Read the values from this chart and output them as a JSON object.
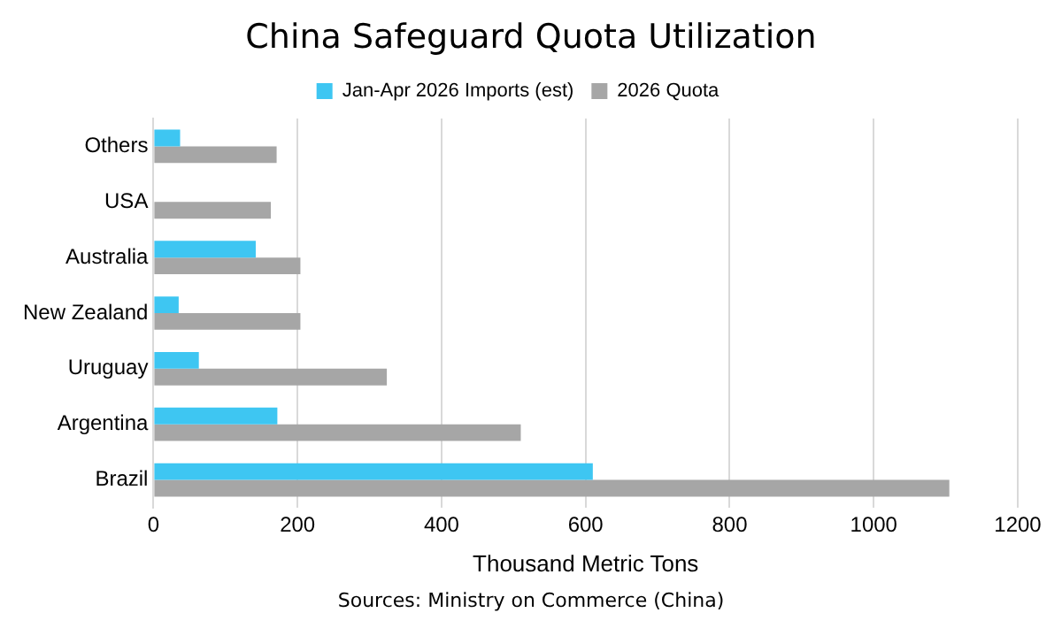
{
  "chart_data": {
    "type": "bar",
    "orientation": "horizontal",
    "title": "China Safeguard Quota Utilization",
    "xlabel": "Thousand Metric Tons",
    "categories": [
      "Others",
      "USA",
      "Australia",
      "New Zealand",
      "Uruguay",
      "Argentina",
      "Brazil"
    ],
    "series": [
      {
        "name": "Jan-Apr 2026 Imports (est)",
        "color": "#3ec6f2",
        "values": [
          37,
          0,
          142,
          35,
          63,
          172,
          610
        ]
      },
      {
        "name": "2026 Quota",
        "color": "#a6a6a6",
        "values": [
          171,
          163,
          204,
          204,
          324,
          510,
          1105
        ]
      }
    ],
    "xlim": [
      0,
      1200
    ],
    "xticks": [
      0,
      200,
      400,
      600,
      800,
      1000,
      1200
    ],
    "grid": "x",
    "legend": "top",
    "annotations": [
      "Sources: Ministry on Commerce (China)"
    ]
  }
}
